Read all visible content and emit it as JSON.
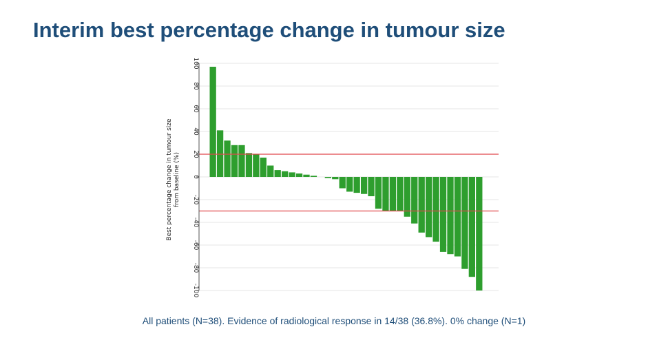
{
  "slide": {
    "title": "Interim best percentage change in tumour size",
    "footnote": "All patients (N=38). Evidence of radiological response in 14/38 (36.8%). 0% change (N=1)"
  },
  "colors": {
    "title": "#1f4e79",
    "bar": "#2e9e2e",
    "reference_line": "#e0474c",
    "grid": "#e6e6e6"
  },
  "chart_data": {
    "type": "bar",
    "ylabel_lines": [
      "Best percentage change in tumour size",
      "from baseline (%)"
    ],
    "xlabel": "",
    "ylim": [
      -100,
      100
    ],
    "yticks": [
      100,
      80,
      60,
      40,
      20,
      0,
      -20,
      -40,
      -60,
      -80,
      -100
    ],
    "grid": true,
    "reference_lines": [
      20,
      -30
    ],
    "values": [
      97,
      41,
      32,
      28,
      28,
      21,
      20,
      17,
      10,
      6,
      5,
      4,
      3,
      2,
      1,
      0,
      -1,
      -2,
      -10,
      -13,
      -14,
      -15,
      -17,
      -28,
      -30,
      -30,
      -30,
      -35,
      -41,
      -49,
      -53,
      -57,
      -66,
      -68,
      -70,
      -81,
      -88,
      -100
    ]
  }
}
